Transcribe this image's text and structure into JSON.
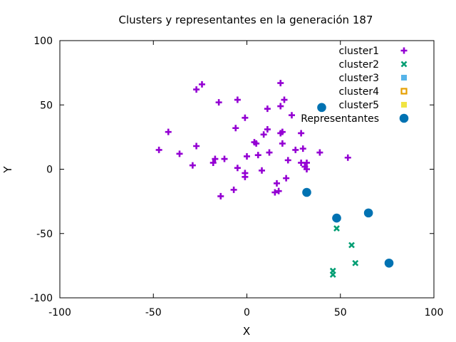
{
  "chart_data": {
    "type": "scatter",
    "title": "Clusters y representantes en la generación 187",
    "xlabel": "X",
    "ylabel": "Y",
    "xlim": [
      -100,
      100
    ],
    "ylim": [
      -100,
      100
    ],
    "xticks": [
      -100,
      -50,
      0,
      50,
      100
    ],
    "yticks": [
      -100,
      -50,
      0,
      50,
      100
    ],
    "xtick_labels": [
      "-100",
      "-50",
      "0",
      "50",
      "100"
    ],
    "ytick_labels": [
      "-100",
      "-50",
      "0",
      "50",
      "100"
    ],
    "grid": false,
    "legend_position": "top-right",
    "series": [
      {
        "name": "cluster1",
        "marker": "plus",
        "color": "#9400d3",
        "points": [
          [
            -24,
            66
          ],
          [
            -27,
            62
          ],
          [
            18,
            67
          ],
          [
            -15,
            52
          ],
          [
            -5,
            54
          ],
          [
            20,
            54
          ],
          [
            18,
            49
          ],
          [
            11,
            47
          ],
          [
            -1,
            40
          ],
          [
            24,
            42
          ],
          [
            -42,
            29
          ],
          [
            -6,
            32
          ],
          [
            11,
            31
          ],
          [
            19,
            29
          ],
          [
            9,
            27
          ],
          [
            18,
            28
          ],
          [
            29,
            28
          ],
          [
            4,
            21
          ],
          [
            5,
            20
          ],
          [
            19,
            20
          ],
          [
            -27,
            18
          ],
          [
            -47,
            15
          ],
          [
            -36,
            12
          ],
          [
            26,
            15
          ],
          [
            30,
            16
          ],
          [
            39,
            13
          ],
          [
            12,
            13
          ],
          [
            6,
            11
          ],
          [
            0,
            10
          ],
          [
            -12,
            8
          ],
          [
            -17,
            8
          ],
          [
            -18,
            5
          ],
          [
            -29,
            3
          ],
          [
            22,
            7
          ],
          [
            29,
            5
          ],
          [
            32,
            5
          ],
          [
            54,
            9
          ],
          [
            -5,
            1
          ],
          [
            8,
            -1
          ],
          [
            31,
            2
          ],
          [
            32,
            0
          ],
          [
            -1,
            -3
          ],
          [
            -1,
            -6
          ],
          [
            21,
            -7
          ],
          [
            -14,
            -21
          ],
          [
            -7,
            -16
          ],
          [
            15,
            -18
          ],
          [
            17,
            -17
          ],
          [
            16,
            -11
          ]
        ]
      },
      {
        "name": "cluster2",
        "marker": "cross",
        "color": "#009e73",
        "points": [
          [
            48,
            -46
          ],
          [
            56,
            -59
          ],
          [
            58,
            -73
          ],
          [
            46,
            -79
          ],
          [
            46,
            -82
          ]
        ]
      },
      {
        "name": "cluster3",
        "marker": "square-filled",
        "color": "#56b4e9",
        "points": []
      },
      {
        "name": "cluster4",
        "marker": "square-open",
        "color": "#e69f00",
        "points": []
      },
      {
        "name": "cluster5",
        "marker": "square-filled",
        "color": "#f0e442",
        "points": []
      },
      {
        "name": "Representantes",
        "marker": "circle",
        "color": "#0072b2",
        "points": [
          [
            40,
            48
          ],
          [
            32,
            -18
          ],
          [
            48,
            -38
          ],
          [
            65,
            -34
          ],
          [
            76,
            -73
          ]
        ]
      }
    ]
  }
}
